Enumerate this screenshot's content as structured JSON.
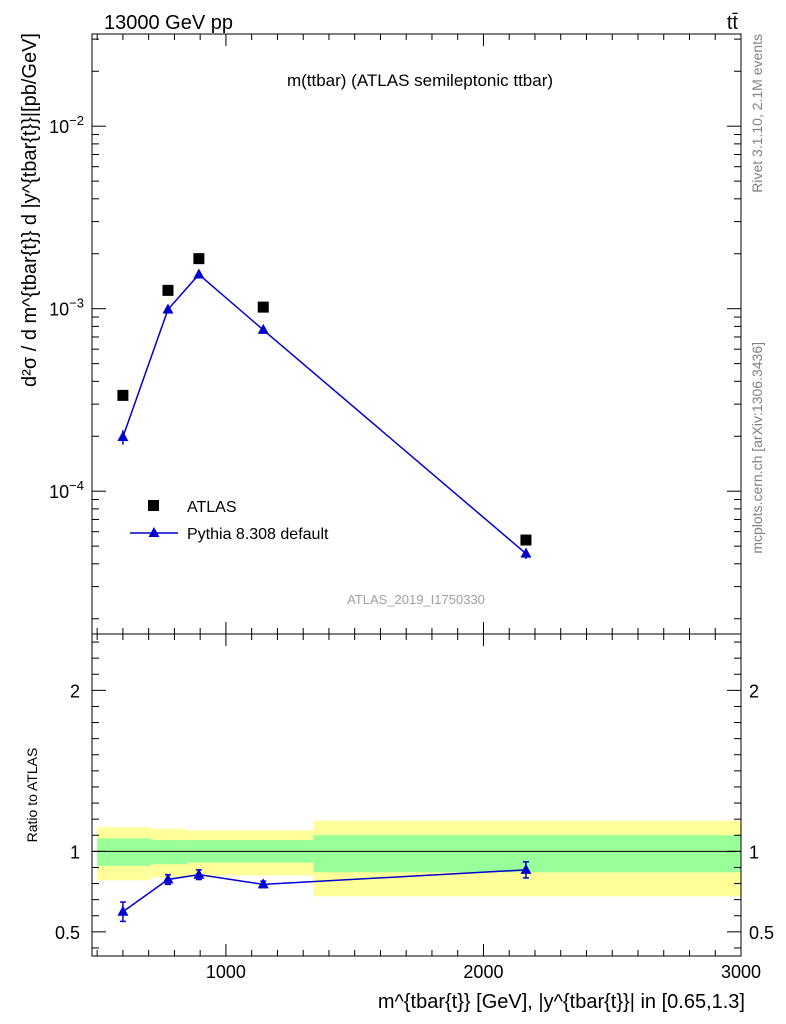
{
  "header": {
    "energy_label": "13000 GeV pp",
    "process_label": "tt̄"
  },
  "chart_data": [
    {
      "type": "scatter",
      "title": "m(ttbar) (ATLAS semileptonic ttbar)",
      "ylabel": "d²σ / d m^{tbar{t}} d |y^{tbar{t}}|[pb/GeV]",
      "xlim": [
        480,
        3000
      ],
      "ylim": [
        1.65e-05,
        0.032
      ],
      "yscale": "log",
      "y_ticks": [
        {
          "value": 0.0001,
          "mantissa": "10",
          "exp": "−4"
        },
        {
          "value": 0.001,
          "mantissa": "10",
          "exp": "−3"
        },
        {
          "value": 0.01,
          "mantissa": "10",
          "exp": "−2"
        }
      ],
      "legend_position": "lower-left",
      "watermark": "ATLAS_2019_I1750330",
      "series": [
        {
          "name": "ATLAS",
          "marker": "square",
          "color": "#000000",
          "x": [
            600,
            775,
            895,
            1145,
            2165
          ],
          "y": [
            0.000335,
            0.00126,
            0.00188,
            0.00102,
            5.4e-05
          ]
        },
        {
          "name": "Pythia 8.308 default",
          "marker": "triangle",
          "color": "#0000cc",
          "x": [
            600,
            775,
            895,
            1145,
            2165
          ],
          "y": [
            0.000198,
            0.00099,
            0.00154,
            0.000765,
            4.55e-05
          ],
          "err": [
            1.8e-05,
            5e-05,
            6e-05,
            2e-05,
            3e-06
          ]
        }
      ]
    },
    {
      "type": "line",
      "ylabel": "Ratio to ATLAS",
      "xlabel": "m^{tbar{t}} [GeV], |y^{tbar{t}}| in [0.65,1.3]",
      "xlim": [
        480,
        3000
      ],
      "ylim": [
        0.35,
        2.35
      ],
      "x_ticks": [
        "1000",
        "2000",
        "3000"
      ],
      "x_tick_values": [
        1000,
        2000,
        3000
      ],
      "y_ticks": [
        "0.5",
        "1",
        "2"
      ],
      "y_tick_values": [
        0.5,
        1,
        2
      ],
      "uncertainty_bands": [
        {
          "x0": 500,
          "x1": 710,
          "yellow": [
            0.82,
            1.15
          ],
          "green": [
            0.91,
            1.08
          ]
        },
        {
          "x0": 710,
          "x1": 850,
          "yellow": [
            0.84,
            1.14
          ],
          "green": [
            0.92,
            1.07
          ]
        },
        {
          "x0": 850,
          "x1": 950,
          "yellow": [
            0.84,
            1.13
          ],
          "green": [
            0.93,
            1.07
          ]
        },
        {
          "x0": 950,
          "x1": 1340,
          "yellow": [
            0.85,
            1.13
          ],
          "green": [
            0.93,
            1.07
          ]
        },
        {
          "x0": 1340,
          "x1": 3000,
          "yellow": [
            0.72,
            1.19
          ],
          "green": [
            0.87,
            1.1
          ]
        }
      ],
      "series": [
        {
          "name": "Pythia 8.308 default",
          "color": "#0000cc",
          "x": [
            600,
            775,
            895,
            1145,
            2165
          ],
          "y": [
            0.625,
            0.825,
            0.855,
            0.795,
            0.885
          ],
          "err": [
            0.06,
            0.03,
            0.03,
            0.02,
            0.05
          ]
        }
      ]
    }
  ],
  "side_labels": {
    "rivet": "Rivet 3.1.10,  2.1M events",
    "mcplots": "mcplots.cern.ch [arXiv:1306.3436]"
  }
}
